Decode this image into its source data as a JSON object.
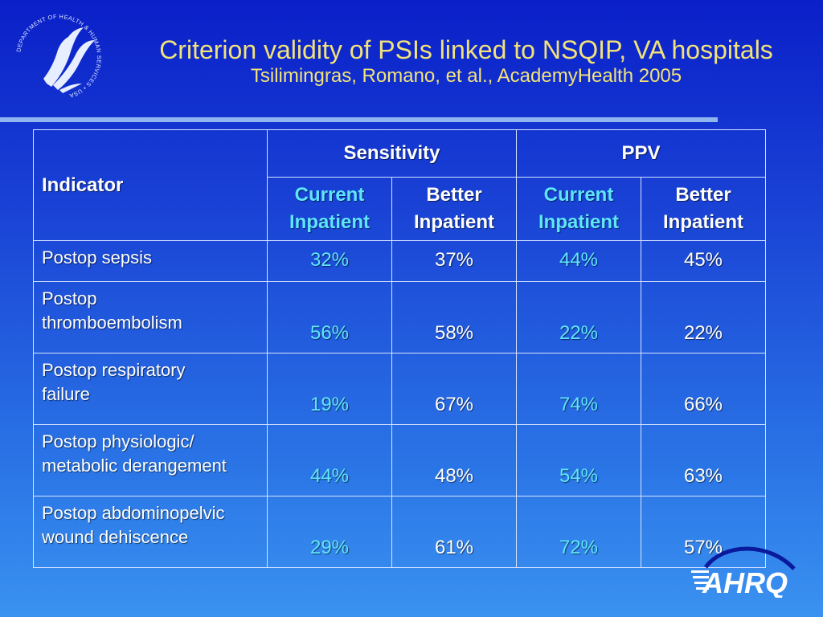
{
  "hhs_logo": {
    "seal_text": "DEPARTMENT OF HEALTH & HUMAN SERVICES • USA",
    "icon": "hhs-eagle-icon"
  },
  "header": {
    "title": "Criterion validity of PSIs linked to NSQIP, VA hospitals",
    "subtitle": "Tsilimingras, Romano, et al., AcademyHealth 2005"
  },
  "table": {
    "indicator_label": "Indicator",
    "groups": [
      "Sensitivity",
      "PPV"
    ],
    "subheaders": [
      {
        "line1": "Current",
        "line2": "Inpatient"
      },
      {
        "line1": "Better",
        "line2": "Inpatient"
      },
      {
        "line1": "Current",
        "line2": "Inpatient"
      },
      {
        "line1": "Better",
        "line2": "Inpatient"
      }
    ],
    "rows": [
      {
        "indicator": [
          "Postop sepsis"
        ],
        "values": [
          "32%",
          "37%",
          "44%",
          "45%"
        ]
      },
      {
        "indicator": [
          "Postop",
          "thromboembolism"
        ],
        "values": [
          "56%",
          "58%",
          "22%",
          "22%"
        ]
      },
      {
        "indicator": [
          "Postop respiratory",
          "failure"
        ],
        "values": [
          "19%",
          "67%",
          "74%",
          "66%"
        ]
      },
      {
        "indicator": [
          "Postop physiologic/",
          "metabolic derangement"
        ],
        "values": [
          "44%",
          "48%",
          "54%",
          "63%"
        ]
      },
      {
        "indicator": [
          "Postop abdominopelvic",
          "wound dehiscence"
        ],
        "values": [
          "29%",
          "61%",
          "72%",
          "57%"
        ]
      }
    ]
  },
  "ahrq_logo": {
    "text": "AHRQ",
    "icon": "ahrq-logo"
  },
  "colors": {
    "title": "#f2e27a",
    "current_inpatient": "#5fe6ff",
    "better_inpatient": "#ffffff",
    "rule": "#8fb6ef"
  }
}
